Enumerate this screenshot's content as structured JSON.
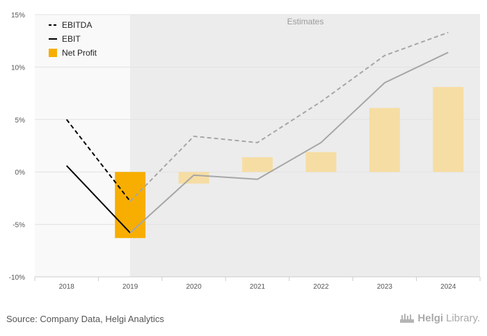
{
  "chart_data": {
    "type": "bar+line",
    "categories": [
      "2018",
      "2019",
      "2020",
      "2021",
      "2022",
      "2023",
      "2024"
    ],
    "y_tick_labels": [
      "15%",
      "10%",
      "5%",
      "0%",
      "-5%",
      "-10%"
    ],
    "y_ticks": [
      15,
      10,
      5,
      0,
      -5,
      -10
    ],
    "ylim": [
      -10,
      15
    ],
    "estimates_label": "Estimates",
    "estimates_start_category": "2020",
    "series": [
      {
        "name": "EBITDA",
        "kind": "line",
        "style": "dashed",
        "values": [
          5.0,
          -2.8,
          3.4,
          2.8,
          6.7,
          11.1,
          13.3
        ]
      },
      {
        "name": "EBIT",
        "kind": "line",
        "style": "solid",
        "values": [
          0.6,
          -5.8,
          -0.3,
          -0.7,
          2.8,
          8.5,
          11.4
        ]
      },
      {
        "name": "Net Profit",
        "kind": "bar",
        "values": [
          null,
          -6.3,
          -1.1,
          1.4,
          1.9,
          6.1,
          8.1
        ]
      }
    ],
    "legend": {
      "placement": "top-left",
      "entries": [
        "EBITDA",
        "EBIT",
        "Net Profit"
      ]
    },
    "colors": {
      "ebitda_actual": "#000000",
      "ebitda_estimate": "#a6a6a6",
      "ebit_actual": "#000000",
      "ebit_estimate": "#a6a6a6",
      "profit_actual": "#f7ae00",
      "profit_estimate": "#f6dda3",
      "plot_bg": "#f9f9f9",
      "estimate_bg": "#ececec",
      "grid": "#e2e2e2",
      "text": "#555555"
    },
    "grid": true
  },
  "footer": {
    "source": "Source: Company Data, Helgi Analytics",
    "brand_prefix": "Helgi",
    "brand_suffix": "Library."
  }
}
